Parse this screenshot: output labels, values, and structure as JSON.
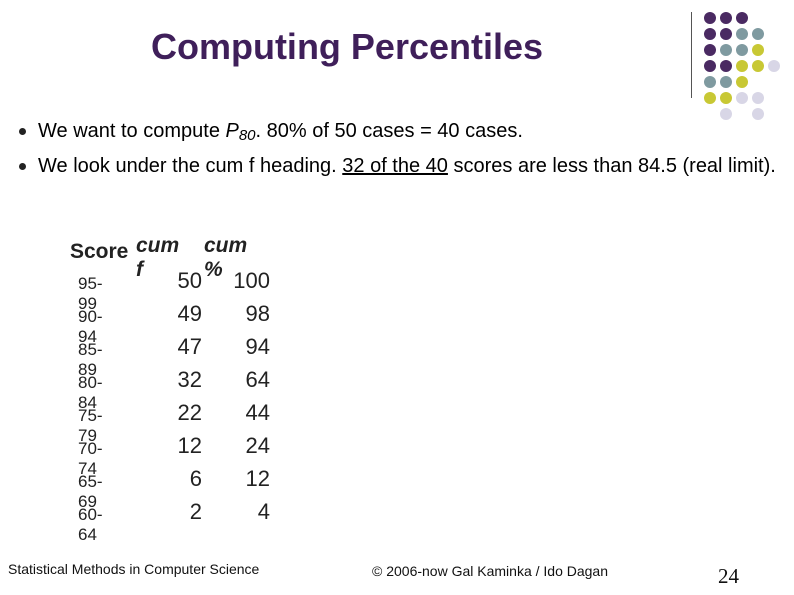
{
  "slide": {
    "title": "Computing Percentiles"
  },
  "decoration": {
    "dot_colors": {
      "purple": "#4a2a62",
      "gray_teal": "#7f9aa0",
      "yellow_green": "#c8c834",
      "lavender": "#d8d6e6"
    }
  },
  "bullets": [
    {
      "parts": [
        {
          "text": "We want to compute "
        },
        {
          "text": "P",
          "style": "italic"
        },
        {
          "text": "80",
          "style": "italic-sub"
        },
        {
          "text": ".  80% of 50 cases = 40 cases."
        }
      ]
    },
    {
      "parts": [
        {
          "text": "We look under the cum f heading. "
        },
        {
          "text": "32 of the 40",
          "style": "underline"
        },
        {
          "text": " scores are less than 84.5 (real limit)."
        }
      ]
    }
  ],
  "table": {
    "headers": {
      "score": "Score",
      "cum_f": "cum f",
      "cum_pct": "cum %"
    },
    "rows": [
      {
        "score": "95-99",
        "cum_f": "50",
        "cum_pct": "100"
      },
      {
        "score": "90-94",
        "cum_f": "49",
        "cum_pct": "98"
      },
      {
        "score": "85-89",
        "cum_f": "47",
        "cum_pct": "94"
      },
      {
        "score": "80-84",
        "cum_f": "32",
        "cum_pct": "64"
      },
      {
        "score": "75-79",
        "cum_f": "22",
        "cum_pct": "44"
      },
      {
        "score": "70-74",
        "cum_f": "12",
        "cum_pct": "24"
      },
      {
        "score": "65-69",
        "cum_f": "6",
        "cum_pct": "12"
      },
      {
        "score": "60-64",
        "cum_f": "2",
        "cum_pct": "4"
      }
    ]
  },
  "footer": {
    "left": "Statistical Methods in Computer Science",
    "center": "© 2006-now  Gal Kaminka / Ido Dagan",
    "page": "24"
  }
}
